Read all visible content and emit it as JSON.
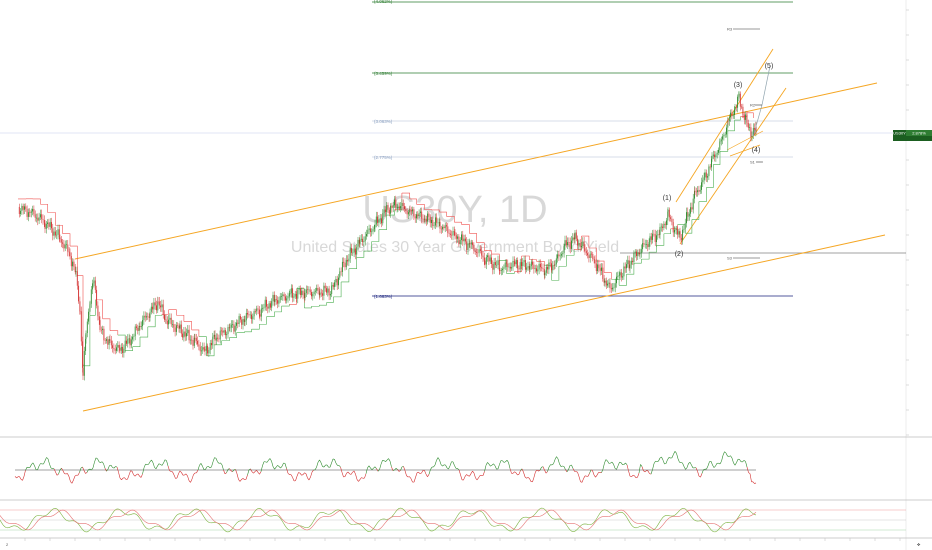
{
  "chart_data": {
    "type": "line",
    "symbol": "US30Y",
    "interval": "1D",
    "watermark_title": "US30Y, 1D",
    "watermark_subtitle": "United States 30 Year Government Bond Yield",
    "current_price_tag": [
      "US30Y",
      "2.878%"
    ],
    "fib_levels": [
      {
        "label": "(4.062%)",
        "color": "#2e7d32"
      },
      {
        "label": "(3.459%)",
        "color": "#2e7d32"
      },
      {
        "label": "(3.063%)",
        "color": "#8aa0c0"
      },
      {
        "label": "(2.775%)",
        "color": "#8aa0c0"
      },
      {
        "label": "(1.663%)",
        "color": "#1a237e"
      }
    ],
    "wave_labels": [
      "(1)",
      "(2)",
      "(3)",
      "(4)",
      "(5)"
    ],
    "sr_labels": [
      "R3",
      "R2",
      "S1",
      "S3"
    ],
    "bottom_corner": [
      "2",
      "✤"
    ],
    "colors": {
      "up": "#2e8b2e",
      "down": "#d32f2f",
      "channel": "#f5a623",
      "stop_up": "#4caf50",
      "stop_down": "#ef5350"
    }
  }
}
